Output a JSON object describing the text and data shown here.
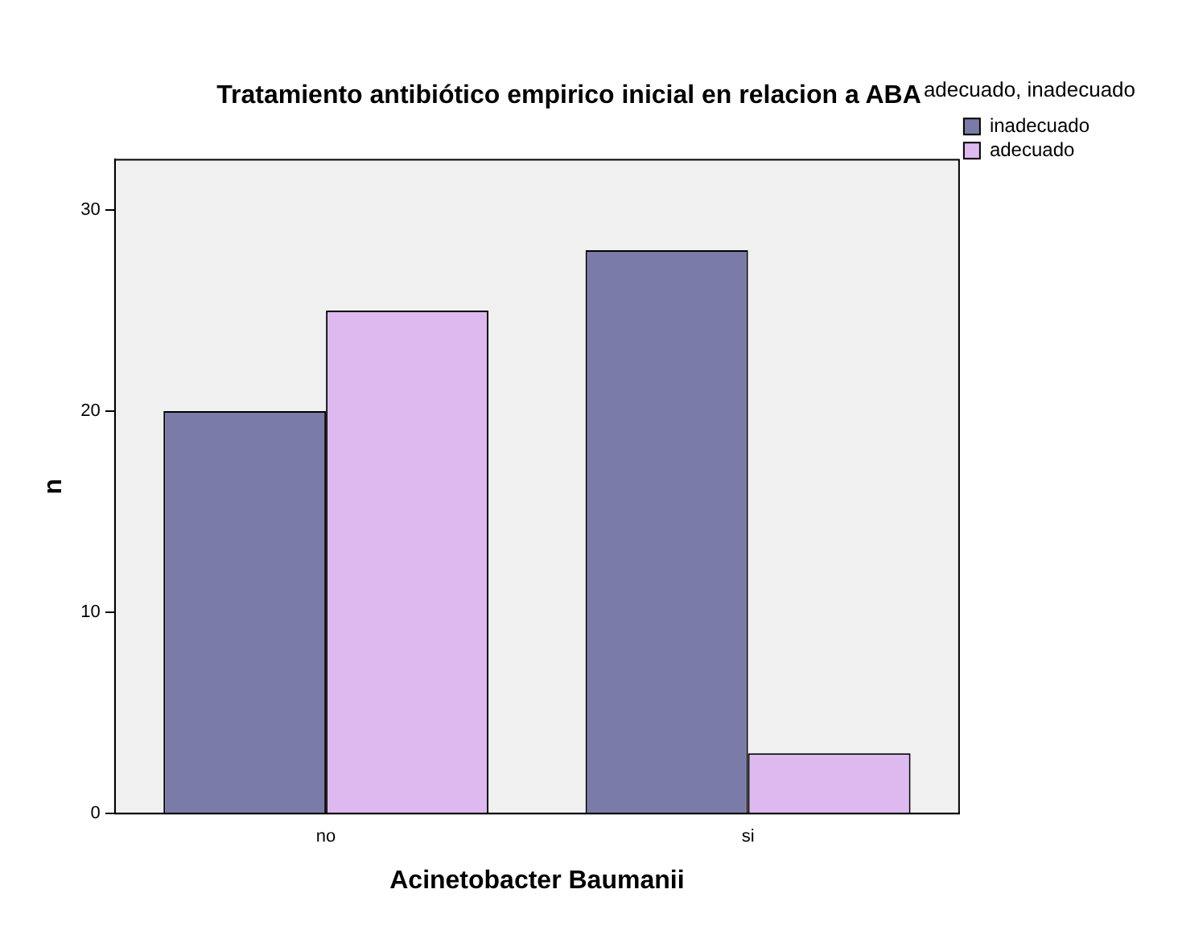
{
  "chart_data": {
    "type": "bar",
    "title": "Tratamiento antibiótico empirico inicial en relacion a ABA",
    "xlabel": "Acinetobacter Baumanii",
    "ylabel": "n",
    "legend_title": "adecuado, inadecuado",
    "categories": [
      "no",
      "si"
    ],
    "series": [
      {
        "name": "inadecuado",
        "color": "#7b7ba8",
        "values": [
          20,
          28
        ]
      },
      {
        "name": "adecuado",
        "color": "#ddb9f0",
        "values": [
          25,
          3
        ]
      }
    ],
    "ylim": [
      0,
      32.5
    ],
    "yticks": [
      0,
      10,
      20,
      30
    ],
    "grid": false,
    "legend": "top right"
  }
}
